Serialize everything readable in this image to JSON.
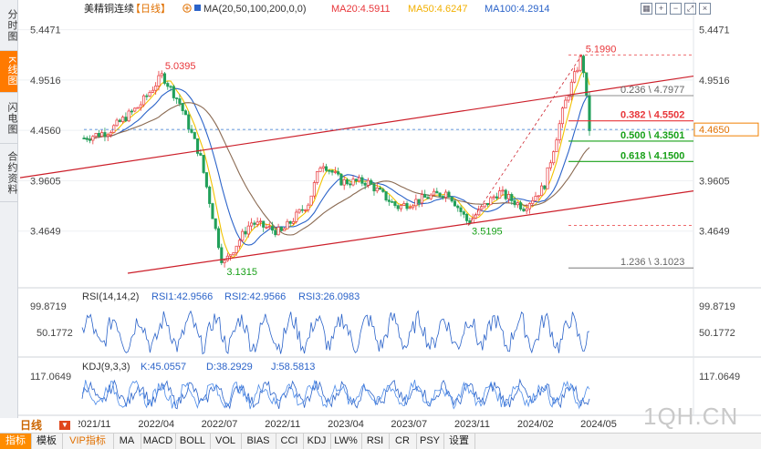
{
  "vertical_tabs": [
    "分时图",
    "K线图",
    "闪电图",
    "合约资料"
  ],
  "toolbar_icons": [
    "grid-icon",
    "zoom-in-icon",
    "zoom-out-icon",
    "expand-icon",
    "close-icon"
  ],
  "header": {
    "symbol": "美精铜连续",
    "period_tag": "【日线】",
    "ma_params": "MA(20,50,100,200,0,0)",
    "ma20": "MA20:4.5911",
    "ma50": "MA50:4.6247",
    "ma100": "MA100:4.2914"
  },
  "colors": {
    "up": "#e8363a",
    "down": "#22a05a",
    "ma20": "#f2c200",
    "ma50": "#2b63c9",
    "ma100": "#8a6a52",
    "channel": "#cc1f2a",
    "fib_red": "#e8363a",
    "fib_green": "#18a018",
    "fib_gray": "#666666"
  },
  "chart_data": {
    "type": "candlestick",
    "y_axis_ticks": [
      "5.4471",
      "4.9516",
      "4.4560",
      "3.9605",
      "3.4649"
    ],
    "ylim": [
      3.05,
      5.56
    ],
    "x_axis_ticks": [
      "2021/11",
      "2022/04",
      "2022/07",
      "2022/11",
      "2023/04",
      "2023/07",
      "2023/11",
      "2024/02",
      "2024/05"
    ],
    "current_price": "4.4650",
    "annotations": {
      "high_2021": "5.0395",
      "low_2022": "3.1315",
      "low_2023": "3.5195",
      "high_2024": "5.1990"
    },
    "fib_levels": [
      {
        "label": "0.236 \\ 4.7977",
        "value": 4.7977,
        "style": "gray"
      },
      {
        "label": "0.382 \\ 4.5502",
        "value": 4.5502,
        "style": "red"
      },
      {
        "label": "0.500 \\ 4.3501",
        "value": 4.3501,
        "style": "green"
      },
      {
        "label": "0.618 \\ 4.1500",
        "value": 4.15,
        "style": "green"
      },
      {
        "label": "1.236 \\ 3.1023",
        "value": 3.1023,
        "style": "gray"
      }
    ],
    "fib_extra_levels": [
      5.199,
      3.5195
    ],
    "price_pivots": [
      {
        "t": 0.0,
        "p": 4.38
      },
      {
        "t": 0.05,
        "p": 4.45
      },
      {
        "t": 0.11,
        "p": 4.7
      },
      {
        "t": 0.155,
        "p": 5.0
      },
      {
        "t": 0.19,
        "p": 4.72
      },
      {
        "t": 0.23,
        "p": 4.2
      },
      {
        "t": 0.275,
        "p": 3.13
      },
      {
        "t": 0.33,
        "p": 3.55
      },
      {
        "t": 0.39,
        "p": 3.45
      },
      {
        "t": 0.445,
        "p": 3.75
      },
      {
        "t": 0.47,
        "p": 4.15
      },
      {
        "t": 0.51,
        "p": 3.95
      },
      {
        "t": 0.56,
        "p": 3.95
      },
      {
        "t": 0.62,
        "p": 3.7
      },
      {
        "t": 0.68,
        "p": 3.8
      },
      {
        "t": 0.72,
        "p": 3.85
      },
      {
        "t": 0.76,
        "p": 3.55
      },
      {
        "t": 0.82,
        "p": 3.85
      },
      {
        "t": 0.87,
        "p": 3.7
      },
      {
        "t": 0.91,
        "p": 3.9
      },
      {
        "t": 0.95,
        "p": 4.7
      },
      {
        "t": 0.985,
        "p": 5.2
      },
      {
        "t": 1.0,
        "p": 4.47
      }
    ],
    "ma_endpoints": {
      "ma20": 4.5911,
      "ma50": 4.6247,
      "ma100": 4.2914
    }
  },
  "rsi": {
    "label": "RSI(14,14,2)",
    "rsi1": "RSI1:42.9566",
    "rsi2": "RSI2:42.9566",
    "rsi3": "RSI3:26.0983",
    "ticks": [
      "99.8719",
      "50.1772"
    ]
  },
  "kdj": {
    "label": "KDJ(9,3,3)",
    "k": "K:45.0557",
    "d": "D:38.2929",
    "j": "J:58.5813",
    "ticks": [
      "117.0649"
    ]
  },
  "period_selector": "日线",
  "bottom_tabs": [
    "指标",
    "模板",
    "VIP指标",
    "MA",
    "MACD",
    "BOLL",
    "VOL",
    "BIAS",
    "CCI",
    "KDJ",
    "LW%",
    "RSI",
    "CR",
    "PSY",
    "设置"
  ],
  "watermark": "1QH.CN"
}
